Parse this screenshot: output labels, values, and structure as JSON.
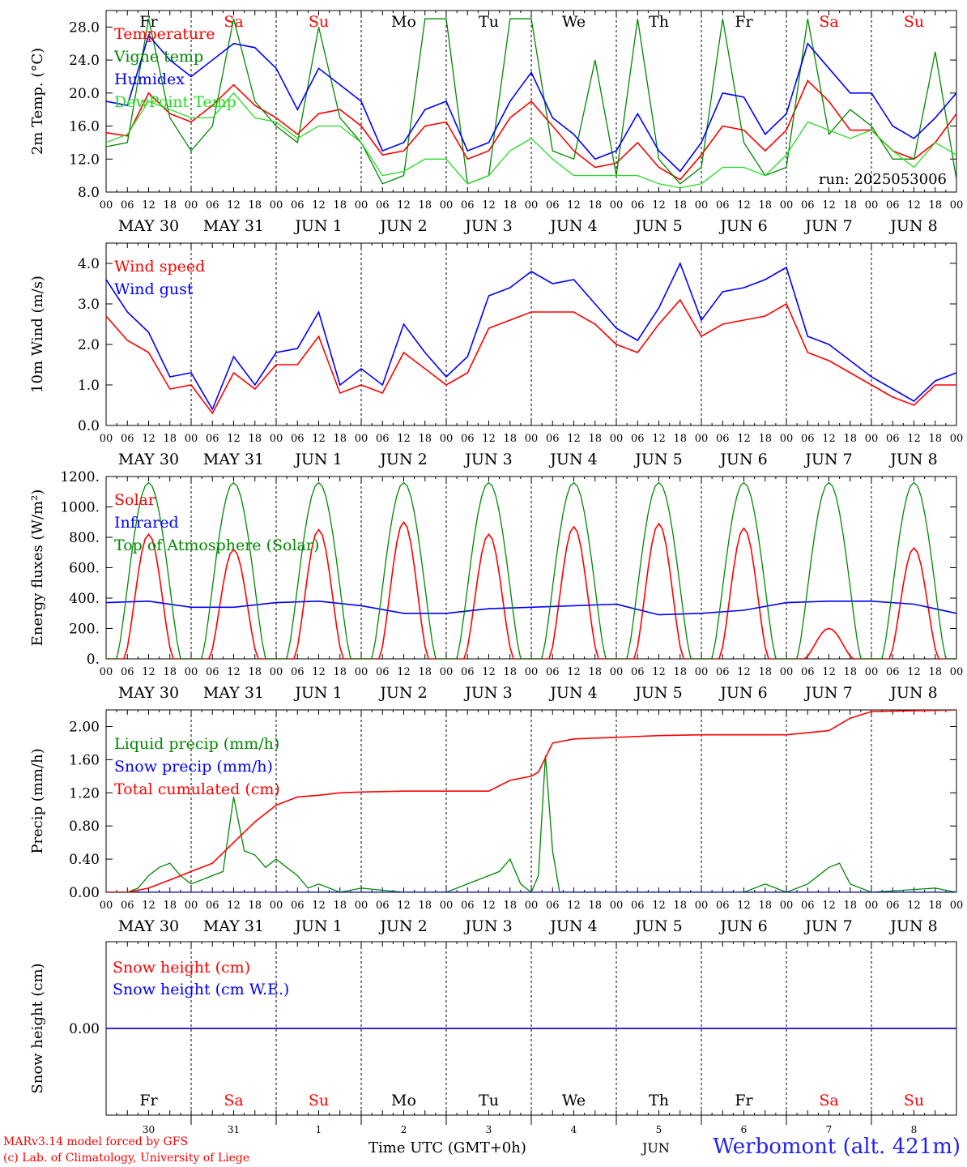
{
  "colors": {
    "red": "#ff0000",
    "blue": "#0000ff",
    "green": "#008800",
    "lightgreen": "#22dd22",
    "weekday": "#000000",
    "weekend": "#ff0000",
    "axis": "#000000"
  },
  "time_axis": {
    "hour_labels": [
      "00",
      "06",
      "12",
      "18"
    ],
    "end_label": "00",
    "date_labels": [
      "MAY 30",
      "MAY 31",
      "JUN  1",
      "JUN  2",
      "JUN  3",
      "JUN  4",
      "JUN  5",
      "JUN  6",
      "JUN  7",
      "JUN  8"
    ],
    "day_names": [
      "Fr",
      "Sa",
      "Su",
      "Mo",
      "Tu",
      "We",
      "Th",
      "Fr",
      "Sa",
      "Su"
    ],
    "weekend_days": [
      1,
      2,
      8,
      9
    ],
    "day_numbers": [
      "30",
      "31",
      "1",
      "2",
      "3",
      "4",
      "5",
      "6",
      "7",
      "8"
    ],
    "title": "Time UTC (GMT+0h)",
    "month_label": "JUN"
  },
  "footer": {
    "model": "MARv3.14 model forced by GFS",
    "lab": "(c) Lab. of Climatology, University of Liege",
    "station": "Werbomont (alt. 421m)"
  },
  "chart_data": [
    {
      "type": "line",
      "ylabel": "2m Temp. (°C)",
      "ylim": [
        8,
        30
      ],
      "yticks": [
        "8.0",
        "12.0",
        "16.0",
        "20.0",
        "24.0",
        "28.0"
      ],
      "annotation": "run: 2025053006",
      "series": [
        {
          "name": "Temperature",
          "color": "red",
          "x": [
            0,
            6,
            12,
            18,
            24,
            30,
            36,
            42,
            48,
            54,
            60,
            66,
            72,
            78,
            84,
            90,
            96,
            102,
            108,
            114,
            120,
            126,
            132,
            138,
            144,
            150,
            156,
            162,
            168,
            174,
            180,
            186,
            192,
            198,
            204,
            210,
            216,
            222,
            228,
            234,
            240
          ],
          "y": [
            15.2,
            14.8,
            20,
            17.5,
            16.5,
            18.5,
            21,
            18.5,
            17,
            15,
            17.5,
            18,
            16,
            12.5,
            13,
            16,
            16.5,
            12,
            13,
            17,
            19,
            16,
            13,
            11,
            11.5,
            14,
            11,
            9.5,
            12.5,
            16,
            15.5,
            13,
            15.5,
            21.5,
            19,
            15.5,
            15.5,
            13,
            12,
            14,
            17.5
          ]
        },
        {
          "name": "Vigne temp",
          "color": "green",
          "x": [
            0,
            6,
            12,
            18,
            24,
            30,
            36,
            42,
            48,
            54,
            60,
            66,
            72,
            78,
            84,
            90,
            96,
            102,
            108,
            114,
            120,
            126,
            132,
            138,
            144,
            150,
            156,
            162,
            168,
            174,
            180,
            186,
            192,
            198,
            204,
            210,
            216,
            222,
            228,
            234,
            240
          ],
          "y": [
            13.5,
            14,
            29,
            17,
            13,
            16,
            29,
            19,
            16,
            14,
            28,
            17,
            14,
            9,
            10,
            29,
            29,
            9,
            10,
            29,
            29,
            13,
            12,
            24,
            10,
            29,
            12,
            9,
            11,
            29,
            14,
            10,
            11,
            29,
            15,
            18,
            16,
            12,
            12,
            25,
            9.5
          ]
        },
        {
          "name": "Humidex",
          "color": "blue",
          "x": [
            0,
            6,
            12,
            18,
            24,
            30,
            36,
            42,
            48,
            54,
            60,
            66,
            72,
            78,
            84,
            90,
            96,
            102,
            108,
            114,
            120,
            126,
            132,
            138,
            144,
            150,
            156,
            162,
            168,
            174,
            180,
            186,
            192,
            198,
            204,
            210,
            216,
            222,
            228,
            234,
            240
          ],
          "y": [
            19,
            18.5,
            27,
            24,
            22,
            24,
            26,
            25.5,
            23,
            18,
            23,
            21,
            19,
            13,
            14,
            18,
            19,
            13,
            14,
            19,
            22.5,
            17,
            15,
            12,
            13,
            17.5,
            13,
            10.5,
            14,
            20,
            19.5,
            15,
            17.5,
            26,
            23,
            20,
            20,
            16,
            14.5,
            17,
            20
          ]
        },
        {
          "name": "DewPoint Temp",
          "color": "lightgreen",
          "x": [
            0,
            6,
            12,
            18,
            24,
            30,
            36,
            42,
            48,
            54,
            60,
            66,
            72,
            78,
            84,
            90,
            96,
            102,
            108,
            114,
            120,
            126,
            132,
            138,
            144,
            150,
            156,
            162,
            168,
            174,
            180,
            186,
            192,
            198,
            204,
            210,
            216,
            222,
            228,
            234,
            240
          ],
          "y": [
            14,
            15,
            19,
            18,
            17,
            17,
            20,
            17,
            16.5,
            14.5,
            16,
            16,
            14,
            10,
            10.5,
            12,
            12,
            9,
            10,
            13,
            14.5,
            12,
            10,
            10,
            10,
            10,
            9,
            8.5,
            9,
            11,
            11,
            10,
            12.5,
            16.5,
            15.5,
            14.5,
            15.5,
            13,
            11,
            14,
            12.5
          ]
        }
      ]
    },
    {
      "type": "line",
      "ylabel": "10m Wind (m/s)",
      "ylim": [
        0,
        4.5
      ],
      "yticks": [
        "0.0",
        "1.0",
        "2.0",
        "3.0",
        "4.0"
      ],
      "series": [
        {
          "name": "Wind speed",
          "color": "red",
          "x": [
            0,
            6,
            12,
            18,
            24,
            30,
            36,
            42,
            48,
            54,
            60,
            66,
            72,
            78,
            84,
            90,
            96,
            102,
            108,
            114,
            120,
            126,
            132,
            138,
            144,
            150,
            156,
            162,
            168,
            174,
            180,
            186,
            192,
            198,
            204,
            210,
            216,
            222,
            228,
            234,
            240
          ],
          "y": [
            2.7,
            2.1,
            1.8,
            0.9,
            1.0,
            0.3,
            1.3,
            0.9,
            1.5,
            1.5,
            2.2,
            0.8,
            1.0,
            0.8,
            1.8,
            1.4,
            1.0,
            1.3,
            2.4,
            2.6,
            2.8,
            2.8,
            2.8,
            2.5,
            2.0,
            1.8,
            2.5,
            3.1,
            2.2,
            2.5,
            2.6,
            2.7,
            3.0,
            1.8,
            1.6,
            1.3,
            1.0,
            0.7,
            0.5,
            1.0,
            1.0
          ]
        },
        {
          "name": "Wind gust",
          "color": "blue",
          "x": [
            0,
            6,
            12,
            18,
            24,
            30,
            36,
            42,
            48,
            54,
            60,
            66,
            72,
            78,
            84,
            90,
            96,
            102,
            108,
            114,
            120,
            126,
            132,
            138,
            144,
            150,
            156,
            162,
            168,
            174,
            180,
            186,
            192,
            198,
            204,
            210,
            216,
            222,
            228,
            234,
            240
          ],
          "y": [
            3.6,
            2.8,
            2.3,
            1.2,
            1.3,
            0.4,
            1.7,
            1.0,
            1.8,
            1.9,
            2.8,
            1.0,
            1.4,
            1.0,
            2.5,
            1.8,
            1.2,
            1.7,
            3.2,
            3.4,
            3.8,
            3.5,
            3.6,
            3.0,
            2.4,
            2.1,
            2.9,
            4.0,
            2.6,
            3.3,
            3.4,
            3.6,
            3.9,
            2.2,
            2.0,
            1.6,
            1.2,
            0.9,
            0.6,
            1.1,
            1.3
          ]
        }
      ]
    },
    {
      "type": "line",
      "ylabel": "Energy fluxes (W/m²)",
      "ylim": [
        0,
        1200
      ],
      "yticks": [
        "0.",
        "200.",
        "400.",
        "600.",
        "800.",
        "1000.",
        "1200."
      ],
      "series": [
        {
          "name": "Solar",
          "color": "red",
          "peaks": [
            820,
            720,
            850,
            900,
            820,
            870,
            890,
            860,
            200,
            730
          ]
        },
        {
          "name": "Infrared",
          "color": "blue",
          "x": [
            0,
            12,
            24,
            36,
            48,
            60,
            72,
            84,
            96,
            108,
            120,
            132,
            144,
            156,
            168,
            180,
            192,
            204,
            216,
            228,
            240
          ],
          "y": [
            370,
            380,
            340,
            340,
            370,
            380,
            350,
            300,
            300,
            330,
            340,
            350,
            360,
            290,
            300,
            320,
            370,
            380,
            380,
            360,
            300
          ]
        },
        {
          "name": "Top of Atmosphere (Solar)",
          "color": "green",
          "peak": 1160
        }
      ]
    },
    {
      "type": "line",
      "ylabel": "Precip (mm/h)",
      "ylim": [
        0,
        2.2
      ],
      "yticks": [
        "0.00",
        "0.40",
        "0.80",
        "1.20",
        "1.60",
        "2.00"
      ],
      "series": [
        {
          "name": "Liquid precip (mm/h)",
          "color": "green",
          "x": [
            0,
            6,
            9,
            12,
            15,
            18,
            21,
            24,
            30,
            33,
            36,
            39,
            42,
            45,
            48,
            51,
            54,
            57,
            60,
            66,
            72,
            84,
            96,
            108,
            111,
            114,
            117,
            120,
            122,
            124,
            126,
            128,
            132,
            144,
            180,
            186,
            189,
            192,
            198,
            204,
            207,
            210,
            216,
            234,
            240
          ],
          "y": [
            0,
            0,
            0.05,
            0.2,
            0.3,
            0.35,
            0.2,
            0.1,
            0.2,
            0.25,
            1.15,
            0.5,
            0.45,
            0.3,
            0.4,
            0.3,
            0.2,
            0.05,
            0.1,
            0,
            0.05,
            0,
            0,
            0.2,
            0.25,
            0.4,
            0.1,
            0,
            0.2,
            1.65,
            0.5,
            0,
            0,
            0,
            0,
            0.1,
            0.05,
            0,
            0.1,
            0.3,
            0.35,
            0.1,
            0,
            0.05,
            0
          ]
        },
        {
          "name": "Snow precip (mm/h)",
          "color": "blue",
          "x": [
            0,
            240
          ],
          "y": [
            0,
            0
          ]
        },
        {
          "name": "Total cumulated (cm)",
          "color": "red",
          "x": [
            0,
            6,
            12,
            18,
            24,
            30,
            36,
            42,
            48,
            54,
            60,
            66,
            72,
            84,
            96,
            108,
            114,
            120,
            122,
            126,
            132,
            144,
            156,
            168,
            180,
            192,
            204,
            210,
            216,
            228,
            240
          ],
          "y": [
            0,
            0,
            0.05,
            0.15,
            0.25,
            0.35,
            0.6,
            0.85,
            1.05,
            1.15,
            1.17,
            1.2,
            1.21,
            1.22,
            1.22,
            1.22,
            1.35,
            1.4,
            1.45,
            1.8,
            1.85,
            1.87,
            1.89,
            1.9,
            1.9,
            1.9,
            1.95,
            2.1,
            2.18,
            2.19,
            2.2
          ]
        }
      ]
    },
    {
      "type": "line",
      "ylabel": "Snow height (cm)",
      "ylim": [
        -1,
        1
      ],
      "yticks": [
        "0.00"
      ],
      "series": [
        {
          "name": "Snow height (cm)",
          "color": "red",
          "x": [
            0,
            240
          ],
          "y": [
            0,
            0
          ]
        },
        {
          "name": "Snow height (cm W.E.)",
          "color": "blue",
          "x": [
            0,
            240
          ],
          "y": [
            0,
            0
          ]
        }
      ]
    }
  ]
}
